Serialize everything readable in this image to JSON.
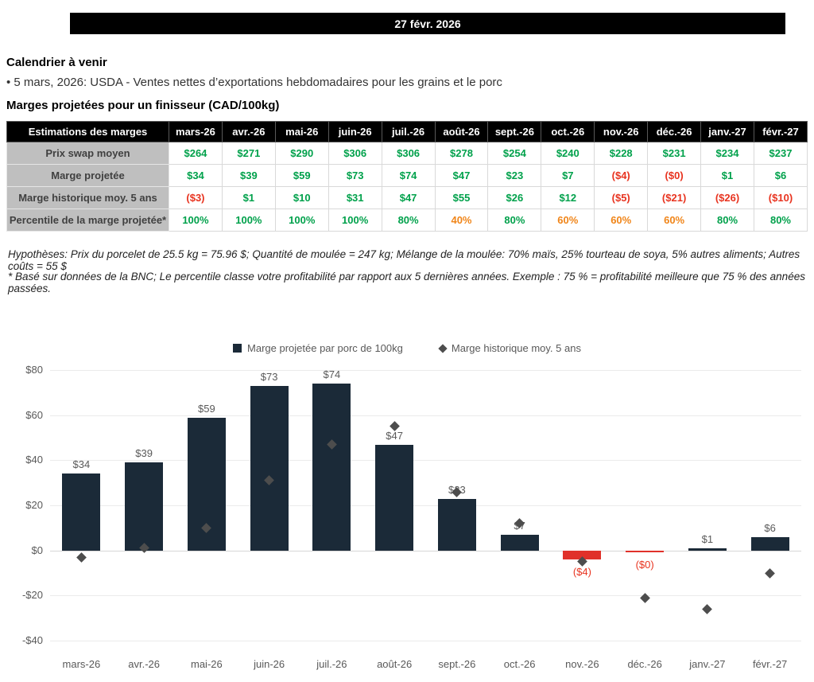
{
  "header": {
    "date": "27 févr. 2026"
  },
  "calendar": {
    "title": "Calendrier à venir",
    "items": [
      "• 5 mars, 2026: USDA - Ventes nettes d’exportations hebdomadaires pour les grains et le porc"
    ]
  },
  "margins_section": {
    "title": "Marges projetées pour un finisseur (CAD/100kg)"
  },
  "table": {
    "corner_label": "Estimations des marges",
    "months": [
      "mars-26",
      "avr.-26",
      "mai-26",
      "juin-26",
      "juil.-26",
      "août-26",
      "sept.-26",
      "oct.-26",
      "nov.-26",
      "déc.-26",
      "janv.-27",
      "févr.-27"
    ],
    "rows": [
      {
        "label": "Prix swap moyen",
        "cells": [
          {
            "t": "$264",
            "c": "green"
          },
          {
            "t": "$271",
            "c": "green"
          },
          {
            "t": "$290",
            "c": "green"
          },
          {
            "t": "$306",
            "c": "green"
          },
          {
            "t": "$306",
            "c": "green"
          },
          {
            "t": "$278",
            "c": "green"
          },
          {
            "t": "$254",
            "c": "green"
          },
          {
            "t": "$240",
            "c": "green"
          },
          {
            "t": "$228",
            "c": "green"
          },
          {
            "t": "$231",
            "c": "green"
          },
          {
            "t": "$234",
            "c": "green"
          },
          {
            "t": "$237",
            "c": "green"
          }
        ]
      },
      {
        "label": "Marge projetée",
        "cells": [
          {
            "t": "$34",
            "c": "green"
          },
          {
            "t": "$39",
            "c": "green"
          },
          {
            "t": "$59",
            "c": "green"
          },
          {
            "t": "$73",
            "c": "green"
          },
          {
            "t": "$74",
            "c": "green"
          },
          {
            "t": "$47",
            "c": "green"
          },
          {
            "t": "$23",
            "c": "green"
          },
          {
            "t": "$7",
            "c": "green"
          },
          {
            "t": "($4)",
            "c": "red"
          },
          {
            "t": "($0)",
            "c": "red"
          },
          {
            "t": "$1",
            "c": "green"
          },
          {
            "t": "$6",
            "c": "green"
          }
        ]
      },
      {
        "label": "Marge historique moy. 5 ans",
        "cells": [
          {
            "t": "($3)",
            "c": "red"
          },
          {
            "t": "$1",
            "c": "green"
          },
          {
            "t": "$10",
            "c": "green"
          },
          {
            "t": "$31",
            "c": "green"
          },
          {
            "t": "$47",
            "c": "green"
          },
          {
            "t": "$55",
            "c": "green"
          },
          {
            "t": "$26",
            "c": "green"
          },
          {
            "t": "$12",
            "c": "green"
          },
          {
            "t": "($5)",
            "c": "red"
          },
          {
            "t": "($21)",
            "c": "red"
          },
          {
            "t": "($26)",
            "c": "red"
          },
          {
            "t": "($10)",
            "c": "red"
          }
        ]
      },
      {
        "label": "Percentile de la marge projetée*",
        "cells": [
          {
            "t": "100%",
            "c": "green"
          },
          {
            "t": "100%",
            "c": "green"
          },
          {
            "t": "100%",
            "c": "green"
          },
          {
            "t": "100%",
            "c": "green"
          },
          {
            "t": "80%",
            "c": "green"
          },
          {
            "t": "40%",
            "c": "orange"
          },
          {
            "t": "80%",
            "c": "green"
          },
          {
            "t": "60%",
            "c": "orange"
          },
          {
            "t": "60%",
            "c": "orange"
          },
          {
            "t": "60%",
            "c": "orange"
          },
          {
            "t": "80%",
            "c": "green"
          },
          {
            "t": "80%",
            "c": "green"
          }
        ]
      }
    ]
  },
  "notes": [
    "Hypothèses: Prix du porcelet de 25.5 kg = 75.96 $; Quantité de moulée = 247 kg; Mélange de la moulée: 70% maïs, 25% tourteau de soya, 5% autres aliments; Autres coûts = 55 $",
    "* Basé sur données de la BNC; Le percentile classe votre profitabilité par rapport aux 5 dernières années. Exemple : 75 % = profitabilité meilleure que 75 % des années passées."
  ],
  "chart_data": {
    "type": "bar",
    "categories": [
      "mars-26",
      "avr.-26",
      "mai-26",
      "juin-26",
      "juil.-26",
      "août-26",
      "sept.-26",
      "oct.-26",
      "nov.-26",
      "déc.-26",
      "janv.-27",
      "févr.-27"
    ],
    "series": [
      {
        "name": "Marge projetée par porc de 100kg",
        "type": "bar",
        "values": [
          34,
          39,
          59,
          73,
          74,
          47,
          23,
          7,
          -4,
          0,
          1,
          6
        ],
        "labels": [
          "$34",
          "$39",
          "$59",
          "$73",
          "$74",
          "$47",
          "$23",
          "$7",
          "($4)",
          "($0)",
          "$1",
          "$6"
        ]
      },
      {
        "name": "Marge historique moy. 5 ans",
        "type": "scatter",
        "values": [
          -3,
          1,
          10,
          31,
          47,
          55,
          26,
          12,
          -5,
          -21,
          -26,
          -10
        ]
      }
    ],
    "ylim": [
      -40,
      80
    ],
    "yticks": [
      80,
      60,
      40,
      20,
      0,
      -20,
      -40
    ],
    "ytick_labels": [
      "$80",
      "$60",
      "$40",
      "$20",
      "$0",
      "-$20",
      "-$40"
    ],
    "legend_position": "top-center",
    "grid": "horizontal",
    "colors": {
      "bar_positive": "#1B2A38",
      "bar_negative": "#E0312A",
      "marker": "#4d4d4d",
      "label": "#595959",
      "label_negative": "#E8331F"
    }
  }
}
